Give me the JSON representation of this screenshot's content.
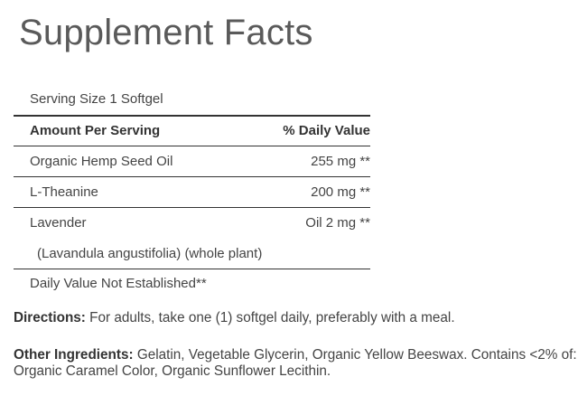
{
  "title": "Supplement Facts",
  "serving_size": "Serving Size 1 Softgel",
  "header": {
    "amount": "Amount Per Serving",
    "daily_value": "% Daily Value"
  },
  "rows": [
    {
      "name": "Organic Hemp Seed Oil",
      "amount": "255 mg **"
    },
    {
      "name": "L-Theanine",
      "amount": "200 mg **"
    },
    {
      "name": "Lavender",
      "amount": "Oil 2 mg **",
      "sub": "(Lavandula angustifolia) (whole plant)"
    }
  ],
  "footnote": "Daily Value Not Established**",
  "directions": {
    "label": "Directions:",
    "text": " For adults, take one (1) softgel daily, preferably with a meal."
  },
  "other_ingredients": {
    "label": "Other Ingredients:",
    "text": " Gelatin, Vegetable Glycerin, Organic Yellow Beeswax. Contains <2% of: Organic Caramel Color, Organic Sunflower Lecithin."
  }
}
